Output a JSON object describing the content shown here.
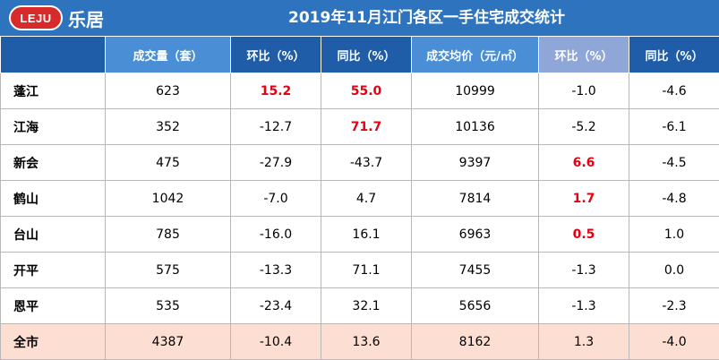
{
  "brand": {
    "logo_mark": "LEJU",
    "logo_name": "乐居"
  },
  "title": "2019年11月江门各区一手住宅成交统计",
  "headers": [
    "",
    "成交量（套）",
    "环比（%）",
    "同比（%）",
    "成交均价（元/㎡）",
    "环比（%）",
    "同比（%）"
  ],
  "rows": [
    {
      "name": "蓬江",
      "cells": [
        "623",
        "15.2",
        "55.0",
        "10999",
        "-1.0",
        "-4.6"
      ],
      "highlight": [
        false,
        true,
        true,
        false,
        false,
        false
      ]
    },
    {
      "name": "江海",
      "cells": [
        "352",
        "-12.7",
        "71.7",
        "10136",
        "-5.2",
        "-6.1"
      ],
      "highlight": [
        false,
        false,
        true,
        false,
        false,
        false
      ]
    },
    {
      "name": "新会",
      "cells": [
        "475",
        "-27.9",
        "-43.7",
        "9397",
        "6.6",
        "-4.5"
      ],
      "highlight": [
        false,
        false,
        false,
        false,
        true,
        false
      ]
    },
    {
      "name": "鹤山",
      "cells": [
        "1042",
        "-7.0",
        "4.7",
        "7814",
        "1.7",
        "-4.8"
      ],
      "highlight": [
        false,
        false,
        false,
        false,
        true,
        false
      ]
    },
    {
      "name": "台山",
      "cells": [
        "785",
        "-16.0",
        "16.1",
        "6963",
        "0.5",
        "1.0"
      ],
      "highlight": [
        false,
        false,
        false,
        false,
        true,
        false
      ]
    },
    {
      "name": "开平",
      "cells": [
        "575",
        "-13.3",
        "71.1",
        "7455",
        "-1.3",
        "0.0"
      ],
      "highlight": [
        false,
        false,
        false,
        false,
        false,
        false
      ]
    },
    {
      "name": "恩平",
      "cells": [
        "535",
        "-23.4",
        "32.1",
        "5656",
        "-1.3",
        "-2.3"
      ],
      "highlight": [
        false,
        false,
        false,
        false,
        false,
        false
      ]
    },
    {
      "name": "全市",
      "cells": [
        "4387",
        "-10.4",
        "13.6",
        "8162",
        "1.3",
        "-4.0"
      ],
      "highlight": [
        false,
        false,
        false,
        false,
        false,
        false
      ],
      "total": true
    }
  ],
  "colors": {
    "title_bg": "#2d73bd",
    "header_dark": "#1f5da8",
    "header_light": "#4a8fd6",
    "header_lavender": "#8fa6d8",
    "highlight_text": "#e60012",
    "total_row_bg": "#fcdfd2"
  }
}
